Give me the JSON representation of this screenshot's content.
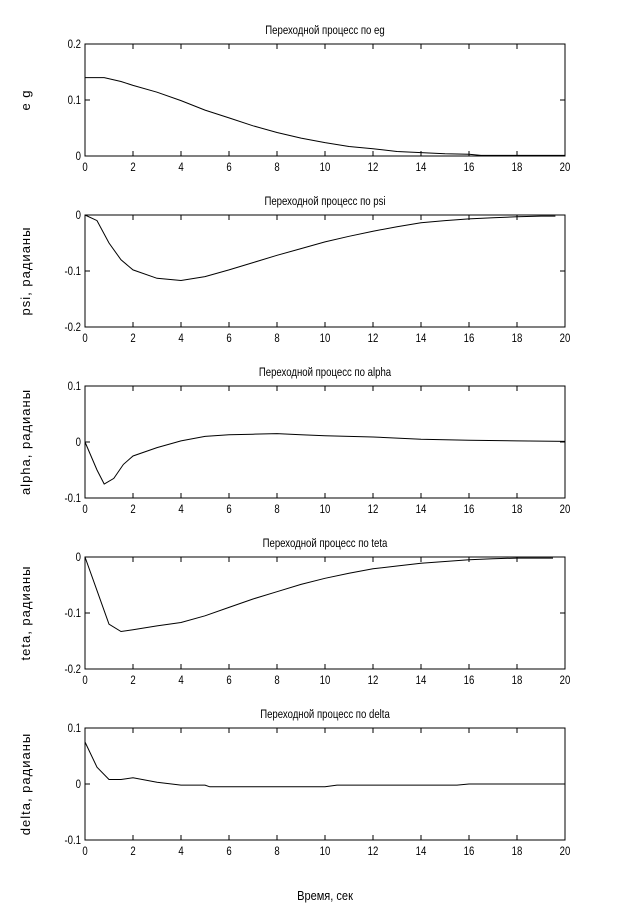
{
  "chart_data": [
    {
      "type": "line",
      "title": "Переходной процесс по eg",
      "ylabel": "e g",
      "xlabel": "Время, сек",
      "xlim": [
        0,
        20
      ],
      "ylim": [
        0,
        0.2
      ],
      "xticks": [
        0,
        2,
        4,
        6,
        8,
        10,
        12,
        14,
        16,
        18,
        20
      ],
      "yticks": [
        0,
        0.1,
        0.2
      ],
      "x": [
        0,
        0.8,
        1.5,
        2,
        3,
        4,
        5,
        6,
        7,
        8,
        9,
        10,
        11,
        12,
        13,
        14,
        15,
        16,
        16.5,
        20
      ],
      "y": [
        0.14,
        0.14,
        0.133,
        0.126,
        0.114,
        0.099,
        0.082,
        0.068,
        0.054,
        0.042,
        0.032,
        0.024,
        0.017,
        0.013,
        0.008,
        0.006,
        0.004,
        0.003,
        0.001,
        0.001
      ]
    },
    {
      "type": "line",
      "title": "Переходной процесс по psi",
      "ylabel": "psi, радианы",
      "xlabel": "Время, сек",
      "xlim": [
        0,
        20
      ],
      "ylim": [
        -0.2,
        0
      ],
      "xticks": [
        0,
        2,
        4,
        6,
        8,
        10,
        12,
        14,
        16,
        18,
        20
      ],
      "yticks": [
        -0.2,
        -0.1,
        0
      ],
      "x": [
        0,
        0.5,
        1,
        1.5,
        2,
        3,
        4,
        5,
        6,
        7,
        8,
        9,
        10,
        11,
        12,
        13,
        14,
        15,
        16,
        17,
        18,
        19,
        19.6
      ],
      "y": [
        0,
        -0.01,
        -0.05,
        -0.08,
        -0.098,
        -0.113,
        -0.117,
        -0.11,
        -0.098,
        -0.085,
        -0.072,
        -0.06,
        -0.048,
        -0.038,
        -0.029,
        -0.021,
        -0.014,
        -0.01,
        -0.007,
        -0.005,
        -0.003,
        -0.002,
        -0.002
      ]
    },
    {
      "type": "line",
      "title": "Переходной процесс по alpha",
      "ylabel": "alpha, радианы",
      "xlabel": "Время, сек",
      "xlim": [
        0,
        20
      ],
      "ylim": [
        -0.1,
        0.1
      ],
      "xticks": [
        0,
        2,
        4,
        6,
        8,
        10,
        12,
        14,
        16,
        18,
        20
      ],
      "yticks": [
        -0.1,
        0,
        0.1
      ],
      "x": [
        0,
        0.5,
        0.8,
        1.2,
        1.6,
        2,
        3,
        4,
        5,
        6,
        7,
        8,
        9,
        10,
        12,
        14,
        16,
        18,
        20
      ],
      "y": [
        0,
        -0.05,
        -0.075,
        -0.065,
        -0.04,
        -0.025,
        -0.01,
        0.002,
        0.01,
        0.013,
        0.014,
        0.015,
        0.013,
        0.011,
        0.009,
        0.005,
        0.003,
        0.002,
        0.001
      ]
    },
    {
      "type": "line",
      "title": "Переходной процесс по teta",
      "ylabel": "teta, радианы",
      "xlabel": "Время, сек",
      "xlim": [
        0,
        20
      ],
      "ylim": [
        -0.2,
        0
      ],
      "xticks": [
        0,
        2,
        4,
        6,
        8,
        10,
        12,
        14,
        16,
        18,
        20
      ],
      "yticks": [
        -0.2,
        -0.1,
        0
      ],
      "x": [
        0,
        0.5,
        1,
        1.5,
        2,
        3,
        4,
        5,
        6,
        7,
        8,
        9,
        10,
        11,
        12,
        13,
        14,
        15,
        16,
        17,
        18,
        19.5
      ],
      "y": [
        0,
        -0.06,
        -0.12,
        -0.133,
        -0.13,
        -0.123,
        -0.117,
        -0.105,
        -0.09,
        -0.075,
        -0.062,
        -0.049,
        -0.038,
        -0.029,
        -0.021,
        -0.016,
        -0.011,
        -0.008,
        -0.005,
        -0.003,
        -0.002,
        -0.002
      ]
    },
    {
      "type": "line",
      "title": "Переходной процесс по delta",
      "ylabel": "delta, радианы",
      "xlabel": "Время, сек",
      "xlim": [
        0,
        20
      ],
      "ylim": [
        -0.1,
        0.1
      ],
      "xticks": [
        0,
        2,
        4,
        6,
        8,
        10,
        12,
        14,
        16,
        18,
        20
      ],
      "yticks": [
        -0.1,
        0,
        0.1
      ],
      "x": [
        0,
        0.5,
        1,
        1.5,
        2,
        3,
        4,
        5,
        5.2,
        10,
        10.5,
        15.5,
        16,
        20
      ],
      "y": [
        0.075,
        0.03,
        0.008,
        0.008,
        0.011,
        0.003,
        -0.002,
        -0.002,
        -0.005,
        -0.005,
        -0.002,
        -0.002,
        0,
        0
      ]
    }
  ],
  "footer": {
    "xlabel": "Время, сек"
  }
}
